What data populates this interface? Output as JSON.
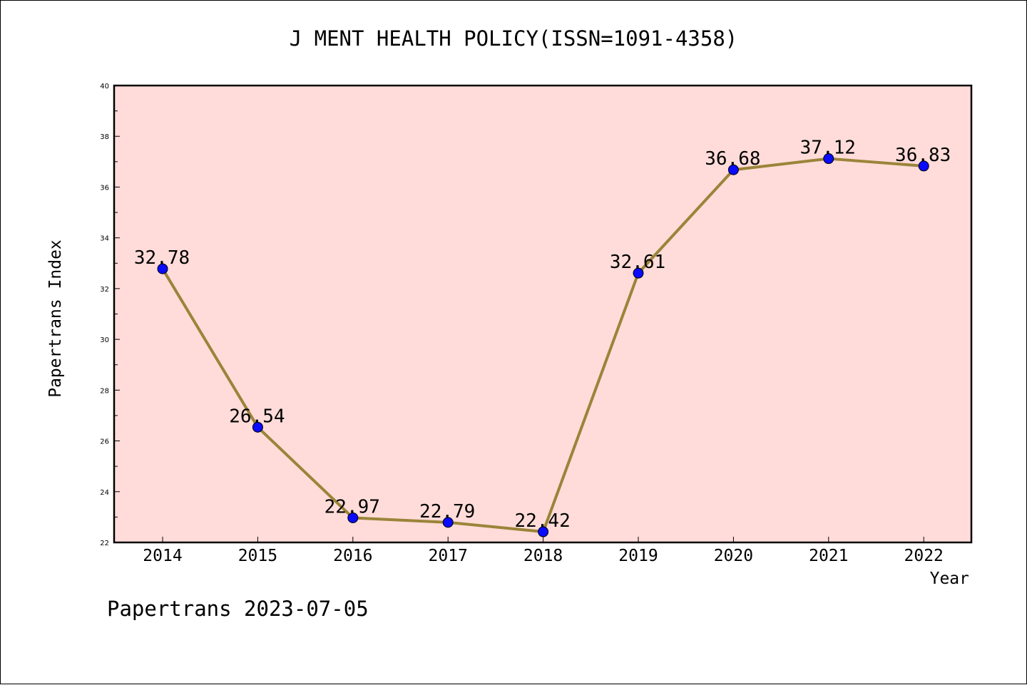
{
  "chart_data": {
    "type": "line",
    "title": "J MENT HEALTH POLICY(ISSN=1091-4358)",
    "xlabel": "Year",
    "ylabel": "Papertrans Index",
    "x": [
      "2014",
      "2015",
      "2016",
      "2017",
      "2018",
      "2019",
      "2020",
      "2021",
      "2022"
    ],
    "series": [
      {
        "values": [
          32.78,
          26.54,
          22.97,
          22.79,
          22.42,
          32.61,
          36.68,
          37.12,
          36.83
        ],
        "labels": [
          "32.78",
          "26.54",
          "22.97",
          "22.79",
          "22.42",
          "32.61",
          "36.68",
          "37.12",
          "36.83"
        ]
      }
    ],
    "ylim": [
      22,
      40
    ],
    "yticks": [
      "22",
      "24",
      "26",
      "28",
      "30",
      "32",
      "34",
      "36",
      "38",
      "40"
    ],
    "grid": false,
    "colors": {
      "plot_background": "#ffdcd9",
      "line": "#9b8439",
      "marker": "#0a0aff"
    }
  },
  "footer": "Papertrans 2023-07-05"
}
